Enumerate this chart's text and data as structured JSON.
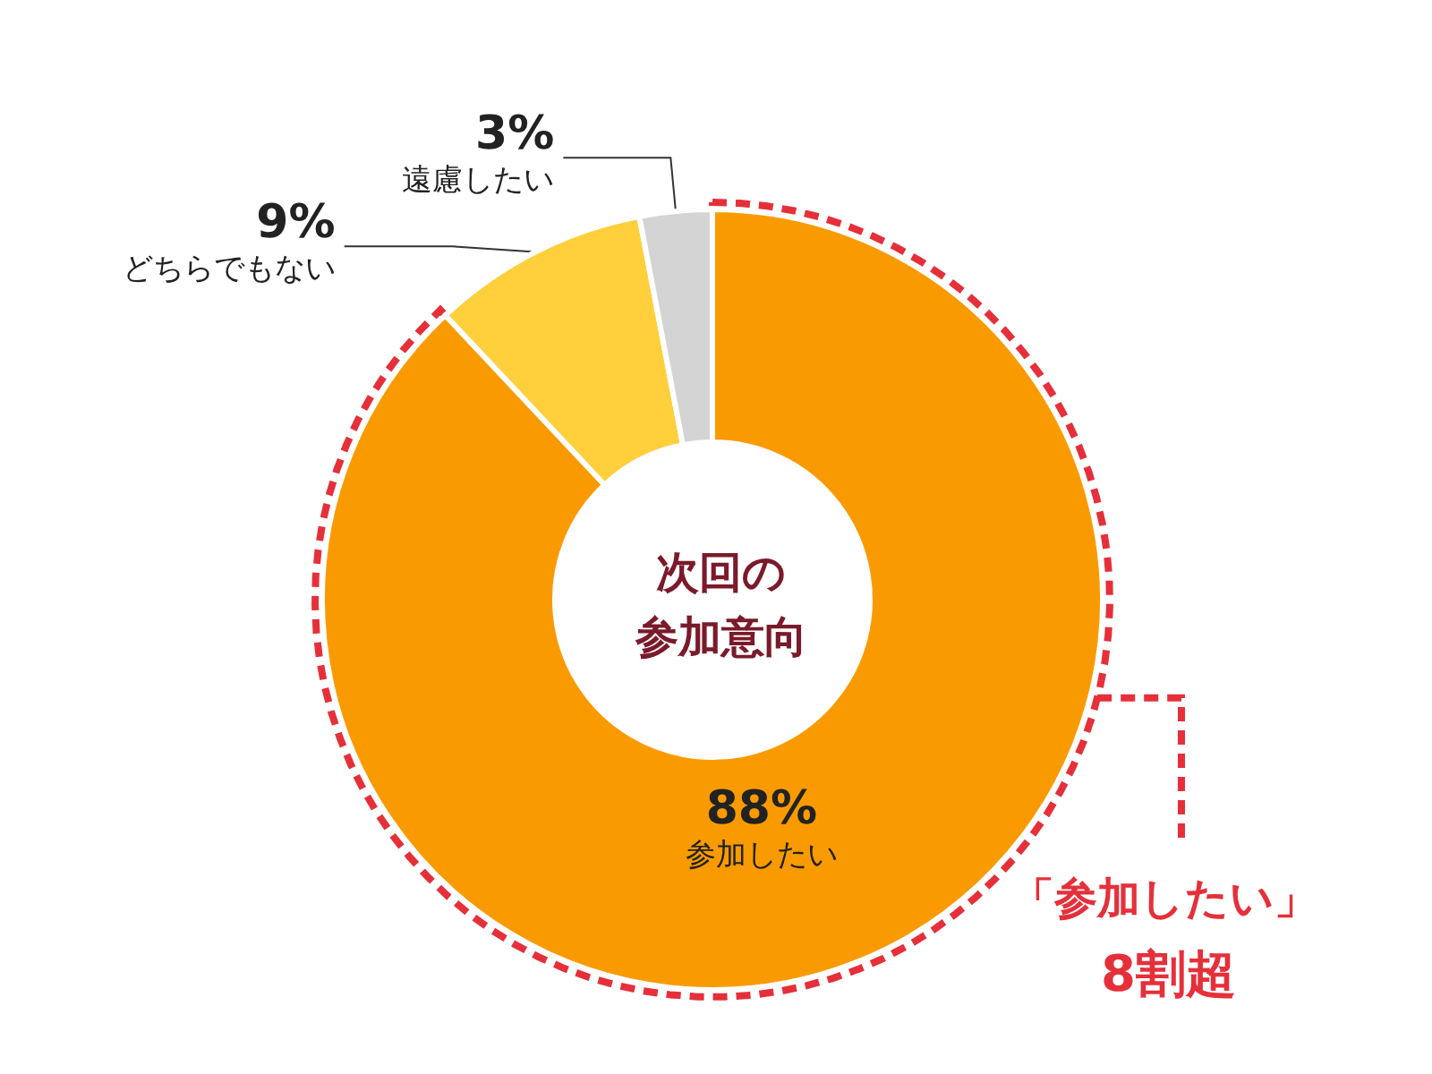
{
  "chart_data": {
    "type": "donut",
    "title": "次回の",
    "subtitle": "参加意向",
    "value_labels": [
      "88%",
      "9%",
      "3%"
    ],
    "categories": [
      "参加したい",
      "どちらでもない",
      "遠慮したい"
    ],
    "values": [
      88,
      9,
      3
    ],
    "colors": [
      "#f99b00",
      "#ffcf3c",
      "#d4d4d4"
    ],
    "data_labels": true,
    "legend": false,
    "annotations": [
      "「参加したい」",
      "8割超"
    ]
  }
}
